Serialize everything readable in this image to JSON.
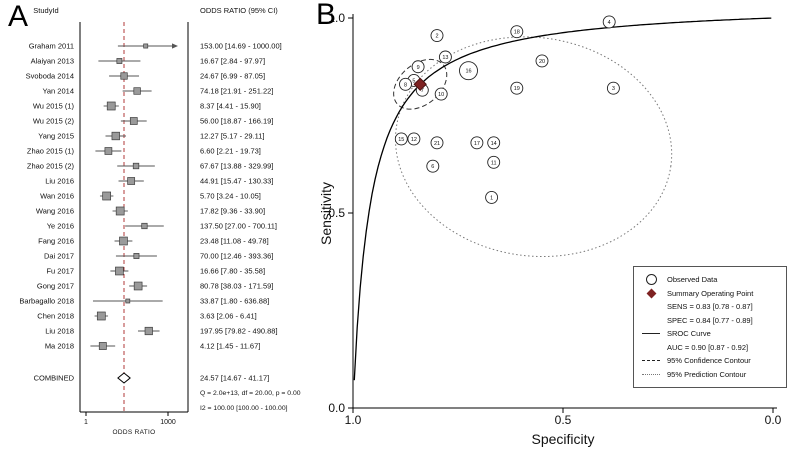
{
  "colors": {
    "pooled_line": "#b03a3a",
    "summary_point": "#7e2222",
    "study_marker": "#9a9a9a"
  },
  "panelA": {
    "label": "A",
    "header_study": "StudyId",
    "header_or": "ODDS RATIO (95% CI)",
    "axis_label": "ODDS RATIO"
  },
  "panelB": {
    "label": "B",
    "xlabel": "Specificity",
    "ylabel": "Sensitivity",
    "legend": {
      "observed": "Observed Data",
      "summary_title": "Summary Operating Point",
      "summary_sens": "SENS = 0.83 [0.78 - 0.87]",
      "summary_spec": "SPEC = 0.84 [0.77 - 0.89]",
      "sroc": "SROC Curve",
      "auc": "AUC = 0.90 [0.87 - 0.92]",
      "conf": "95% Confidence Contour",
      "pred": "95% Prediction Contour"
    }
  },
  "chart_data": [
    {
      "type": "forest",
      "title": "ODDS RATIO (95% CI)",
      "xlabel": "ODDS RATIO",
      "x_scale": "log10",
      "x_ticks": [
        1,
        1000
      ],
      "pooled_or": 24.57,
      "studies": [
        {
          "label": "Graham 2011",
          "or": 153.0,
          "lo": 14.69,
          "hi": 1000.0,
          "text": "153.00 [14.69 - 1000.00]",
          "arrow": true
        },
        {
          "label": "Alaiyan 2013",
          "or": 16.67,
          "lo": 2.84,
          "hi": 97.97,
          "text": "16.67 [2.84 - 97.97]"
        },
        {
          "label": "Svoboda 2014",
          "or": 24.67,
          "lo": 6.99,
          "hi": 87.05,
          "text": "24.67 [6.99 - 87.05]"
        },
        {
          "label": "Yan 2014",
          "or": 74.18,
          "lo": 21.91,
          "hi": 251.22,
          "text": "74.18 [21.91 - 251.22]"
        },
        {
          "label": "Wu 2015 (1)",
          "or": 8.37,
          "lo": 4.41,
          "hi": 15.9,
          "text": "8.37 [4.41 - 15.90]"
        },
        {
          "label": "Wu 2015 (2)",
          "or": 56.0,
          "lo": 18.87,
          "hi": 166.19,
          "text": "56.00 [18.87 - 166.19]"
        },
        {
          "label": "Yang 2015",
          "or": 12.27,
          "lo": 5.17,
          "hi": 29.11,
          "text": "12.27 [5.17 - 29.11]"
        },
        {
          "label": "Zhao 2015 (1)",
          "or": 6.6,
          "lo": 2.21,
          "hi": 19.73,
          "text": "6.60 [2.21 - 19.73]"
        },
        {
          "label": "Zhao 2015 (2)",
          "or": 67.67,
          "lo": 13.88,
          "hi": 329.99,
          "text": "67.67 [13.88 - 329.99]"
        },
        {
          "label": "Liu 2016",
          "or": 44.91,
          "lo": 15.47,
          "hi": 130.33,
          "text": "44.91 [15.47 - 130.33]"
        },
        {
          "label": "Wan 2016",
          "or": 5.7,
          "lo": 3.24,
          "hi": 10.05,
          "text": "5.70 [3.24 - 10.05]"
        },
        {
          "label": "Wang 2016",
          "or": 17.82,
          "lo": 9.36,
          "hi": 33.9,
          "text": "17.82 [9.36 - 33.90]"
        },
        {
          "label": "Ye 2016",
          "or": 137.5,
          "lo": 27.0,
          "hi": 700.11,
          "text": "137.50 [27.00 - 700.11]"
        },
        {
          "label": "Fang 2016",
          "or": 23.48,
          "lo": 11.08,
          "hi": 49.78,
          "text": "23.48 [11.08 - 49.78]"
        },
        {
          "label": "Dai 2017",
          "or": 70.0,
          "lo": 12.46,
          "hi": 393.36,
          "text": "70.00 [12.46 - 393.36]"
        },
        {
          "label": "Fu 2017",
          "or": 16.66,
          "lo": 7.8,
          "hi": 35.58,
          "text": "16.66 [7.80 - 35.58]"
        },
        {
          "label": "Gong 2017",
          "or": 80.78,
          "lo": 38.03,
          "hi": 171.59,
          "text": "80.78 [38.03 - 171.59]"
        },
        {
          "label": "Barbagallo 2018",
          "or": 33.87,
          "lo": 1.8,
          "hi": 636.88,
          "text": "33.87 [1.80 - 636.88]"
        },
        {
          "label": "Chen 2018",
          "or": 3.63,
          "lo": 2.06,
          "hi": 6.41,
          "text": "3.63 [2.06 - 6.41]"
        },
        {
          "label": "Liu 2018",
          "or": 197.95,
          "lo": 79.82,
          "hi": 490.88,
          "text": "197.95 [79.82 - 490.88]"
        },
        {
          "label": "Ma 2018",
          "or": 4.12,
          "lo": 1.45,
          "hi": 11.67,
          "text": "4.12 [1.45 - 11.67]"
        }
      ],
      "combined": {
        "label": "COMBINED",
        "or": 24.57,
        "lo": 14.67,
        "hi": 41.17,
        "text": "24.57 [14.67 - 41.17]"
      },
      "het_line1": "Q = 2.0e+13, df = 20.00, p = 0.00",
      "het_line2": "I2 = 100.00 [100.00 - 100.00]"
    },
    {
      "type": "scatter",
      "subtype": "sroc",
      "xlabel": "Specificity",
      "ylabel": "Sensitivity",
      "x_axis_reversed": true,
      "x_range": [
        1.0,
        0.0
      ],
      "y_range": [
        0.0,
        1.0
      ],
      "x_tick_values": [
        1.0,
        0.5,
        0.0
      ],
      "x_tick_labels": [
        "1.0",
        "0.5",
        "0.0"
      ],
      "y_tick_values": [
        1.0,
        0.5,
        0.0
      ],
      "y_tick_labels": [
        "1.0",
        "0.5",
        "0.0"
      ],
      "points": [
        {
          "id": 1,
          "spec": 0.67,
          "sens": 0.54
        },
        {
          "id": 2,
          "spec": 0.8,
          "sens": 0.955
        },
        {
          "id": 3,
          "spec": 0.38,
          "sens": 0.82
        },
        {
          "id": 4,
          "spec": 0.39,
          "sens": 0.99
        },
        {
          "id": 5,
          "spec": 0.855,
          "sens": 0.84
        },
        {
          "id": 6,
          "spec": 0.81,
          "sens": 0.62
        },
        {
          "id": 7,
          "spec": 0.835,
          "sens": 0.815
        },
        {
          "id": 8,
          "spec": 0.875,
          "sens": 0.83
        },
        {
          "id": 9,
          "spec": 0.845,
          "sens": 0.875
        },
        {
          "id": 10,
          "spec": 0.79,
          "sens": 0.805
        },
        {
          "id": 11,
          "spec": 0.665,
          "sens": 0.63
        },
        {
          "id": 12,
          "spec": 0.855,
          "sens": 0.69
        },
        {
          "id": 13,
          "spec": 0.78,
          "sens": 0.9
        },
        {
          "id": 14,
          "spec": 0.665,
          "sens": 0.68
        },
        {
          "id": 15,
          "spec": 0.885,
          "sens": 0.69
        },
        {
          "id": 16,
          "spec": 0.725,
          "sens": 0.865,
          "r": 9
        },
        {
          "id": 17,
          "spec": 0.705,
          "sens": 0.68
        },
        {
          "id": 18,
          "spec": 0.61,
          "sens": 0.965
        },
        {
          "id": 19,
          "spec": 0.61,
          "sens": 0.82
        },
        {
          "id": 20,
          "spec": 0.55,
          "sens": 0.89
        },
        {
          "id": 21,
          "spec": 0.8,
          "sens": 0.68
        }
      ],
      "summary": {
        "sens": 0.83,
        "sens_ci": [
          0.78,
          0.87
        ],
        "spec": 0.84,
        "spec_ci": [
          0.77,
          0.89
        ]
      },
      "sroc": {
        "auc": 0.9,
        "auc_ci": [
          0.87,
          0.92
        ],
        "lambda": 3.24
      },
      "confidence_ellipse": {
        "cx_spec": 0.84,
        "cy_sens": 0.83,
        "rx_spec": 0.072,
        "ry_sens": 0.052,
        "rotate_deg": -40
      },
      "prediction_ellipse": {
        "cx_spec": 0.57,
        "cy_sens": 0.67,
        "rx_spec": 0.33,
        "ry_sens": 0.28,
        "rotate_deg": 8
      }
    }
  ]
}
